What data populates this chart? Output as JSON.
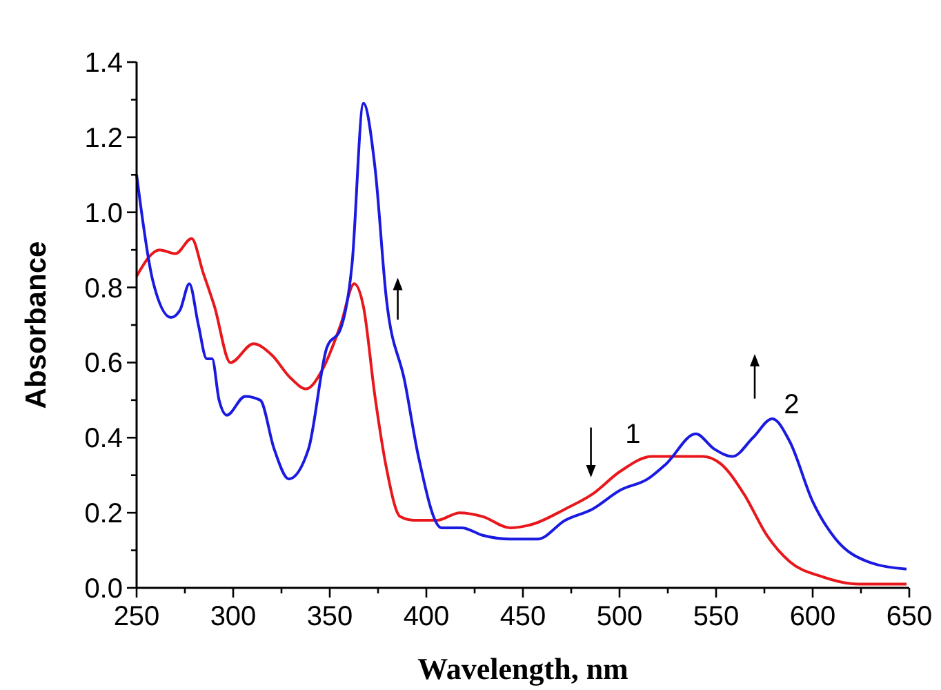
{
  "chart_data": {
    "type": "line",
    "xlabel": "Wavelength, nm",
    "ylabel": "Absorbance",
    "xlim": [
      250,
      650
    ],
    "ylim": [
      0,
      1.4
    ],
    "xticks": [
      250,
      {
        "value": 275,
        "label": null
      },
      300,
      {
        "value": 325,
        "label": null
      },
      350,
      {
        "value": 375,
        "label": null
      },
      400,
      {
        "value": 425,
        "label": null
      },
      450,
      {
        "value": 475,
        "label": null
      },
      500,
      {
        "value": 525,
        "label": null
      },
      550,
      {
        "value": 575,
        "label": null
      },
      600,
      {
        "value": 625,
        "label": null
      },
      650
    ],
    "yticks": [
      {
        "value": 0,
        "label": "0.0"
      },
      {
        "value": 0.1,
        "label": null
      },
      {
        "value": 0.2,
        "label": "0.2"
      },
      {
        "value": 0.3,
        "label": null
      },
      {
        "value": 0.4,
        "label": "0.4"
      },
      {
        "value": 0.5,
        "label": null
      },
      {
        "value": 0.6,
        "label": "0.6"
      },
      {
        "value": 0.7,
        "label": null
      },
      {
        "value": 0.8,
        "label": "0.8"
      },
      {
        "value": 0.9,
        "label": null
      },
      {
        "value": 1.0,
        "label": "1.0"
      },
      {
        "value": 1.1,
        "label": null
      },
      {
        "value": 1.2,
        "label": "1.2"
      },
      {
        "value": 1.3,
        "label": null
      },
      {
        "value": 1.4,
        "label": "1.4"
      }
    ],
    "grid": false,
    "marker": "none",
    "line_style": "solid",
    "series": [
      {
        "name": "1",
        "color": "#e8171b",
        "x": [
          250,
          261.9,
          270.2,
          278.5,
          284.4,
          290.3,
          298.6,
          310.5,
          320,
          329.5,
          337.8,
          346.1,
          355.6,
          362.7,
          367.4,
          373.4,
          379.3,
          386.4,
          393.5,
          405.4,
          417.3,
          429.1,
          443.4,
          455.2,
          471.9,
          486.1,
          500.3,
          516.9,
          528.8,
          543,
          552.5,
          564.4,
          576.3,
          588.1,
          604.7,
          623.7,
          648.6
        ],
        "values": [
          0.83,
          0.9,
          0.89,
          0.93,
          0.84,
          0.75,
          0.6,
          0.65,
          0.62,
          0.56,
          0.53,
          0.58,
          0.7,
          0.81,
          0.75,
          0.51,
          0.32,
          0.19,
          0.18,
          0.18,
          0.2,
          0.19,
          0.16,
          0.17,
          0.21,
          0.25,
          0.31,
          0.35,
          0.35,
          0.35,
          0.33,
          0.25,
          0.14,
          0.07,
          0.03,
          0.01,
          0.01
        ]
      },
      {
        "name": "2",
        "color": "#1a1ae0",
        "x": [
          250,
          258.3,
          267.8,
          272.5,
          277.3,
          282,
          286.3,
          289.1,
          292.7,
          296.7,
          306.2,
          314,
          321.2,
          328.8,
          339,
          348.5,
          355.6,
          361.5,
          367.4,
          373.4,
          379.3,
          388.8,
          395.9,
          407.8,
          418.4,
          429.1,
          443.4,
          457.6,
          471.9,
          486.1,
          500.3,
          514.6,
          524.1,
          539.5,
          549,
          558.5,
          569.1,
          579.1,
          588.1,
          600,
          611.9,
          628.4,
          648.6
        ],
        "values": [
          1.1,
          0.82,
          0.72,
          0.74,
          0.81,
          0.7,
          0.61,
          0.61,
          0.5,
          0.46,
          0.51,
          0.5,
          0.37,
          0.29,
          0.37,
          0.64,
          0.69,
          0.86,
          1.29,
          1.12,
          0.77,
          0.55,
          0.35,
          0.16,
          0.16,
          0.14,
          0.13,
          0.13,
          0.18,
          0.21,
          0.26,
          0.29,
          0.33,
          0.41,
          0.37,
          0.35,
          0.4,
          0.45,
          0.39,
          0.23,
          0.13,
          0.07,
          0.05
        ]
      }
    ]
  }
}
